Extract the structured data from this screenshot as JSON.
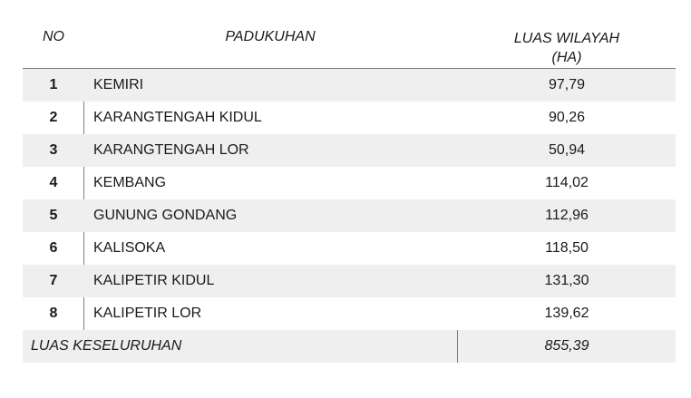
{
  "table": {
    "headers": {
      "no": "NO",
      "name": "PADUKUHAN",
      "area_line1": "LUAS WILAYAH",
      "area_line2": "(HA)"
    },
    "rows": [
      {
        "no": "1",
        "name": "KEMIRI",
        "area": "97,79"
      },
      {
        "no": "2",
        "name": "KARANGTENGAH KIDUL",
        "area": "90,26"
      },
      {
        "no": "3",
        "name": "KARANGTENGAH LOR",
        "area": "50,94"
      },
      {
        "no": "4",
        "name": "KEMBANG",
        "area": "114,02"
      },
      {
        "no": "5",
        "name": "GUNUNG GONDANG",
        "area": "112,96"
      },
      {
        "no": "6",
        "name": "KALISOKA",
        "area": "118,50"
      },
      {
        "no": "7",
        "name": "KALIPETIR KIDUL",
        "area": "131,30"
      },
      {
        "no": "8",
        "name": "KALIPETIR LOR",
        "area": "139,62"
      }
    ],
    "total": {
      "label": "LUAS KESELURUHAN",
      "value": "855,39"
    }
  }
}
